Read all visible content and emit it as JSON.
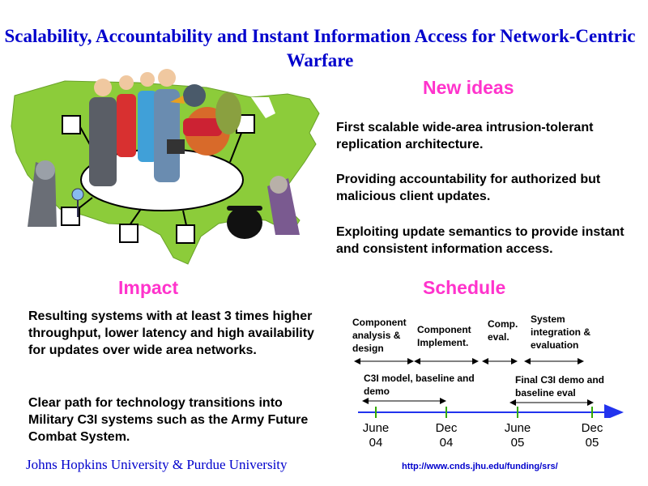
{
  "title": "Scalability, Accountability and Instant Information Access for Network-Centric Warfare",
  "new_ideas": {
    "heading": "New  ideas",
    "items": [
      "First scalable wide-area intrusion-tolerant replication architecture.",
      "Providing accountability for authorized but malicious client updates.",
      "Exploiting update semantics to provide instant and consistent information access."
    ]
  },
  "impact": {
    "heading": "Impact",
    "items": [
      "Resulting systems with at least 3 times higher throughput, lower latency and high availability for updates over wide area networks.",
      "Clear path for technology transitions into Military C3I systems such as the Army Future Combat System."
    ]
  },
  "schedule": {
    "heading": "Schedule",
    "phases": [
      "Component analysis & design",
      "Component Implement.",
      "Comp. eval.",
      "System integration & evaluation"
    ],
    "milestones": [
      "C3I model, baseline and demo",
      "Final C3I demo and baseline eval"
    ],
    "ticks": [
      {
        "month": "June",
        "year": "04"
      },
      {
        "month": "Dec",
        "year": "04"
      },
      {
        "month": "June",
        "year": "05"
      },
      {
        "month": "Dec",
        "year": "05"
      }
    ]
  },
  "footer": "Johns Hopkins University & Purdue University",
  "url": "http://www.cnds.jhu.edu/funding/srs/",
  "colors": {
    "title": "#0000cc",
    "heading": "#ff33cc",
    "timeline": "#2233ee",
    "tick": "#33aa00",
    "map": "#8ccc3a"
  }
}
